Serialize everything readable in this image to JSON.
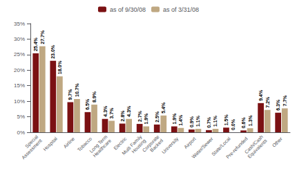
{
  "chart_data": {
    "type": "bar",
    "categories": [
      "Special\nAssessment",
      "Hospital",
      "Airline",
      "Tobacco",
      "Long Term\nHealthcare",
      "Electric",
      "Multi Family\nHousing",
      "Corporate\nBacked",
      "University",
      "Airport",
      "Water/Sewer",
      "State/Local",
      "Pre-refunded",
      "Cash/Cash\nEquivalents",
      "Other"
    ],
    "series": [
      {
        "name": "as of 9/30/08",
        "color": "#7B1113",
        "values": [
          25.4,
          23.0,
          9.7,
          6.5,
          4.3,
          2.8,
          2.7,
          2.5,
          1.9,
          0.9,
          0.7,
          1.5,
          0.6,
          9.4,
          6.3
        ],
        "value_labels": [
          "25.4%",
          "23.0%",
          "9.7%",
          "6.5%",
          "4.3%",
          "2.8%",
          "2.7%",
          "2.5%",
          "1.9%",
          "0.9%",
          "0.7%",
          "1.5%",
          "0.6%",
          "9.4%",
          "6.3%"
        ]
      },
      {
        "name": "as of 3/31/08",
        "color": "#BFA882",
        "values": [
          27.7,
          18.0,
          10.7,
          8.9,
          3.7,
          4.3,
          1.9,
          5.4,
          1.4,
          1.1,
          1.1,
          0.0,
          1.3,
          7.2,
          7.7
        ],
        "value_labels": [
          "27.7%",
          "18.0%",
          "10.7%",
          "8.9%",
          "3.7%",
          "4.3%",
          "1.9%",
          "5.4%",
          "1.4%",
          "1.1%",
          "1.1%",
          "0.0%",
          "1.3%",
          "7.2%",
          "7.7%"
        ]
      }
    ],
    "ylim": [
      0,
      35
    ],
    "yticks": [
      {
        "value": 0,
        "label": "0%"
      },
      {
        "value": 5,
        "label": "5%"
      },
      {
        "value": 10,
        "label": "10%"
      },
      {
        "value": 15,
        "label": "15%"
      },
      {
        "value": 20,
        "label": "20%"
      },
      {
        "value": 25,
        "label": "25%"
      },
      {
        "value": 30,
        "label": "30%"
      },
      {
        "value": 35,
        "label": "35%"
      }
    ],
    "grid": false,
    "legend": "top",
    "data_labels": true
  }
}
